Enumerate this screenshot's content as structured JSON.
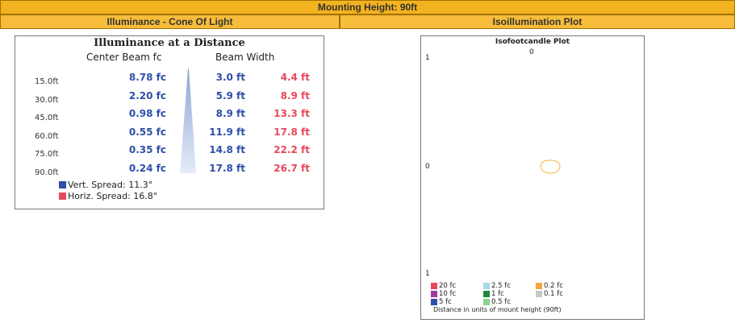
{
  "header": {
    "title": "Mounting Height: 90ft"
  },
  "left": {
    "title": "Illuminance - Cone Of Light",
    "panel_title": "Illuminance at a Distance",
    "columns": [
      "Center Beam fc",
      "Beam Width"
    ],
    "rows": [
      [
        "15.0ft",
        "8.78 fc",
        "3.0 ft",
        "4.4 ft"
      ],
      [
        "30.0ft",
        "2.20 fc",
        "5.9 ft",
        "8.9 ft"
      ],
      [
        "45.0ft",
        "0.98 fc",
        "8.9 ft",
        "13.3 ft"
      ],
      [
        "60.0ft",
        "0.55 fc",
        "11.9 ft",
        "17.8 ft"
      ],
      [
        "75.0ft",
        "0.35 fc",
        "14.8 ft",
        "22.2 ft"
      ],
      [
        "90.0ft",
        "0.24 fc",
        "17.8 ft",
        "26.7 ft"
      ]
    ],
    "legend": [
      {
        "label": "Vert.  Spread: 11.3°",
        "color": "#2e4fa8"
      },
      {
        "label": "Horiz. Spread: 16.8°",
        "color": "#e8485a"
      }
    ]
  },
  "right": {
    "title": "Isoillumination Plot",
    "panel_title": "Isofootcandle Plot",
    "top_label": "0",
    "side_labels": [
      "1",
      "0",
      "1"
    ],
    "legend": [
      {
        "label": "20 fc",
        "color": "#e8485a"
      },
      {
        "label": "10 fc",
        "color": "#9c3aa0"
      },
      {
        "label": "5 fc",
        "color": "#2e4fa8"
      },
      {
        "label": "2.5 fc",
        "color": "#a8d8ee"
      },
      {
        "label": "1 fc",
        "color": "#1f8a3a"
      },
      {
        "label": "0.5 fc",
        "color": "#8fd08f"
      },
      {
        "label": "0.2 fc",
        "color": "#f4a640"
      },
      {
        "label": "0.1 fc",
        "color": "#c8c8c8"
      }
    ],
    "caption": "Distance in units of mount height (90ft)"
  }
}
